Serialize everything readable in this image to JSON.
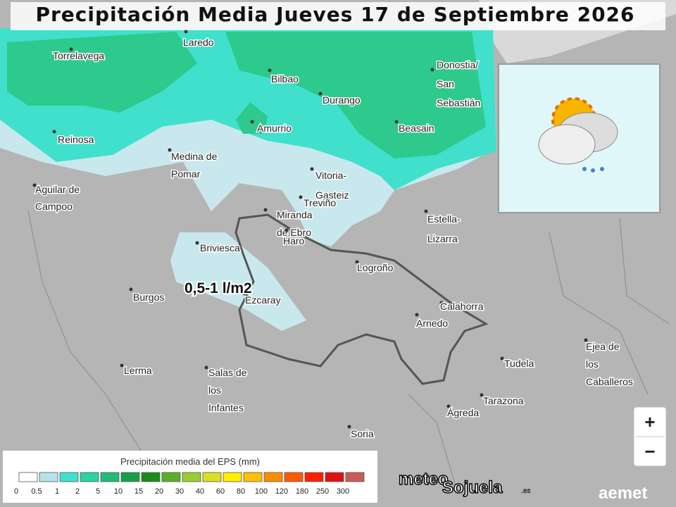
{
  "header": {
    "title": "Precipitación Media Jueves 17 de Septiembre 2026"
  },
  "cities": [
    [
      "Torrelavega"
    ],
    [
      "Laredo"
    ],
    [
      "Bilbao"
    ],
    [
      "Donostia/",
      "San",
      "Sebastián"
    ],
    [
      "Durango"
    ],
    [
      "Amurrio"
    ],
    [
      "Beasain"
    ],
    [
      "Reinosa"
    ],
    [
      "Medina de",
      "Pomar"
    ],
    [
      "Vitoria-",
      "Gasteiz"
    ],
    [
      "Treviño"
    ],
    [
      "Aguilar de",
      "Campoo"
    ],
    [
      "Miranda",
      "de Ebro"
    ],
    [
      "Haro"
    ],
    [
      "Estella-",
      "Lizarra"
    ],
    [
      "Briviesca"
    ],
    [
      "Logroño"
    ],
    [
      "Burgos"
    ],
    [
      "Ezcaray"
    ],
    [
      "Calahorra"
    ],
    [
      "Arnedo"
    ],
    [
      "Tudela"
    ],
    [
      "Ejea de",
      "los",
      "Caballeros"
    ],
    [
      "Lerma"
    ],
    [
      "Salas de",
      "los",
      "Infantes"
    ],
    [
      "Tarazona"
    ],
    [
      "Ágreda"
    ],
    [
      "Soria"
    ]
  ],
  "annotation": "0,5-1 l/m2",
  "legend": {
    "title": "Precipitación media del EPS (mm)",
    "ticks": [
      "0",
      "0.5",
      "1",
      "2",
      "5",
      "10",
      "15",
      "20",
      "30",
      "40",
      "60",
      "80",
      "100",
      "120",
      "180",
      "250",
      "300"
    ]
  },
  "zoom": {
    "in": "+",
    "out": "−"
  },
  "branding": {
    "meteo": "meteo",
    "sojuela": "Sojuela",
    "domain": ".es",
    "aemet": "aemet"
  }
}
